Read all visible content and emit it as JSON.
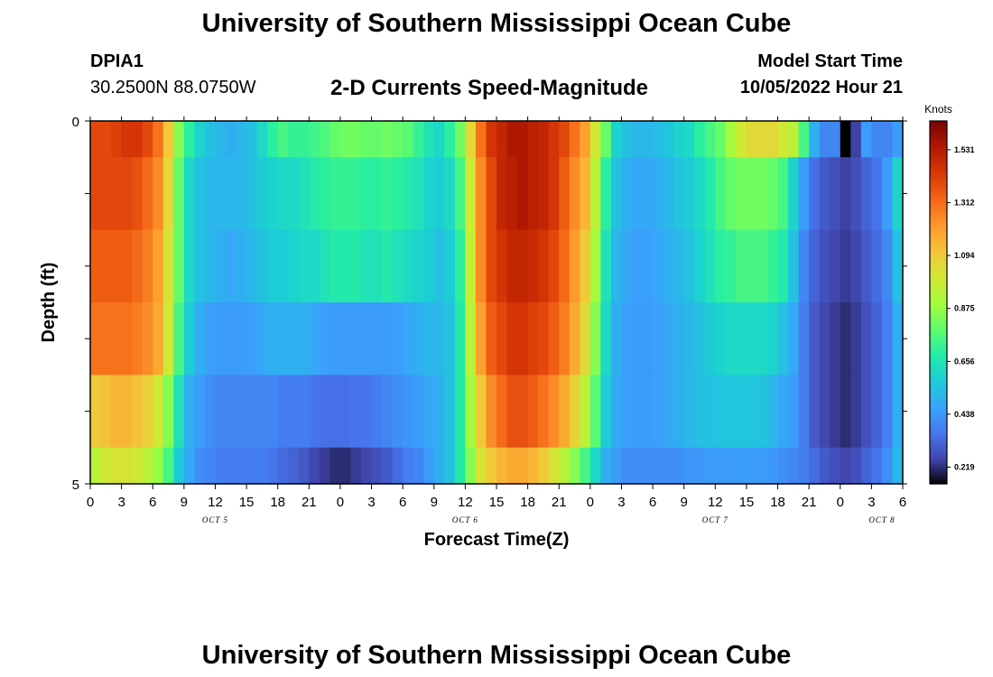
{
  "page": {
    "title": "University of Southern Mississippi Ocean Cube",
    "station": "DPIA1",
    "coords": "30.2500N  88.0750W",
    "subtitle": "2-D Currents Speed-Magnitude",
    "model_label": "Model Start Time",
    "model_time": "10/05/2022 Hour 21",
    "footer_title": "University of Southern Mississippi Ocean Cube"
  },
  "chart_data": {
    "type": "heatmap",
    "title": "2-D Currents Speed-Magnitude",
    "xlabel": "Forecast Time(Z)",
    "ylabel": "Depth (ft)",
    "colorbar_label": "Knots",
    "colorbar_ticks": [
      "1.531",
      "1.312",
      "1.094",
      "0.875",
      "0.656",
      "0.438",
      "0.219"
    ],
    "colorbar_values": [
      1.531,
      1.312,
      1.094,
      0.875,
      0.656,
      0.438,
      0.219
    ],
    "color_range": [
      0.15,
      1.65
    ],
    "x_ticks": [
      "0",
      "3",
      "6",
      "9",
      "12",
      "15",
      "18",
      "21",
      "0",
      "3",
      "6",
      "9",
      "12",
      "15",
      "18",
      "21",
      "0",
      "3",
      "6",
      "9",
      "12",
      "15",
      "18",
      "21",
      "0",
      "3",
      "6"
    ],
    "x_range_hours": [
      0,
      78
    ],
    "date_labels": [
      {
        "text": "OCT 5",
        "hour": 12
      },
      {
        "text": "OCT 6",
        "hour": 36
      },
      {
        "text": "OCT 7",
        "hour": 60
      },
      {
        "text": "OCT 8",
        "hour": 76
      }
    ],
    "y_tick_labels": [
      "0",
      "5"
    ],
    "y_range": [
      0,
      5
    ],
    "layer_depth_bounds": [
      0,
      0.5,
      1.5,
      2.5,
      3.5,
      4.5,
      5
    ],
    "hours": [
      0,
      1,
      2,
      3,
      4,
      5,
      6,
      7,
      8,
      9,
      10,
      11,
      12,
      13,
      14,
      15,
      16,
      17,
      18,
      19,
      20,
      21,
      22,
      23,
      24,
      25,
      26,
      27,
      28,
      29,
      30,
      31,
      32,
      33,
      34,
      35,
      36,
      37,
      38,
      39,
      40,
      41,
      42,
      43,
      44,
      45,
      46,
      47,
      48,
      49,
      50,
      51,
      52,
      53,
      54,
      55,
      56,
      57,
      58,
      59,
      60,
      61,
      62,
      63,
      64,
      65,
      66,
      67,
      68,
      69,
      70,
      71,
      72,
      73,
      74,
      75,
      76,
      77
    ],
    "speeds": [
      [
        1.4,
        1.4,
        1.42,
        1.45,
        1.45,
        1.4,
        1.3,
        1.1,
        0.85,
        0.7,
        0.6,
        0.55,
        0.52,
        0.5,
        0.52,
        0.55,
        0.62,
        0.7,
        0.75,
        0.72,
        0.72,
        0.74,
        0.76,
        0.8,
        0.82,
        0.82,
        0.8,
        0.8,
        0.82,
        0.8,
        0.78,
        0.72,
        0.65,
        0.62,
        0.7,
        0.82,
        1.05,
        1.3,
        1.45,
        1.5,
        1.55,
        1.55,
        1.52,
        1.5,
        1.45,
        1.4,
        1.3,
        1.2,
        1.0,
        0.8,
        0.6,
        0.55,
        0.52,
        0.52,
        0.54,
        0.56,
        0.6,
        0.62,
        0.7,
        0.75,
        0.8,
        0.9,
        1.0,
        1.05,
        1.05,
        1.05,
        1.0,
        0.95,
        0.75,
        0.5,
        0.4,
        0.4,
        0.05,
        0.25,
        0.45,
        0.4,
        0.4,
        0.45
      ],
      [
        1.4,
        1.4,
        1.4,
        1.4,
        1.38,
        1.32,
        1.25,
        1.05,
        0.8,
        0.62,
        0.55,
        0.52,
        0.52,
        0.52,
        0.52,
        0.55,
        0.58,
        0.6,
        0.62,
        0.62,
        0.65,
        0.68,
        0.7,
        0.72,
        0.72,
        0.72,
        0.7,
        0.7,
        0.72,
        0.7,
        0.68,
        0.65,
        0.6,
        0.58,
        0.62,
        0.75,
        1.0,
        1.25,
        1.4,
        1.5,
        1.52,
        1.55,
        1.52,
        1.5,
        1.45,
        1.35,
        1.25,
        1.15,
        0.95,
        0.7,
        0.55,
        0.5,
        0.48,
        0.48,
        0.5,
        0.52,
        0.55,
        0.58,
        0.62,
        0.68,
        0.75,
        0.8,
        0.82,
        0.82,
        0.82,
        0.8,
        0.75,
        0.6,
        0.45,
        0.35,
        0.3,
        0.28,
        0.25,
        0.28,
        0.32,
        0.36,
        0.45,
        0.6
      ],
      [
        1.35,
        1.35,
        1.35,
        1.35,
        1.32,
        1.28,
        1.2,
        1.02,
        0.8,
        0.62,
        0.55,
        0.52,
        0.5,
        0.48,
        0.5,
        0.52,
        0.55,
        0.58,
        0.58,
        0.6,
        0.62,
        0.62,
        0.65,
        0.68,
        0.68,
        0.68,
        0.65,
        0.65,
        0.68,
        0.65,
        0.62,
        0.6,
        0.58,
        0.55,
        0.58,
        0.7,
        0.98,
        1.25,
        1.4,
        1.45,
        1.5,
        1.5,
        1.48,
        1.45,
        1.4,
        1.32,
        1.22,
        1.1,
        0.9,
        0.65,
        0.52,
        0.48,
        0.46,
        0.46,
        0.48,
        0.5,
        0.52,
        0.55,
        0.6,
        0.65,
        0.7,
        0.72,
        0.75,
        0.75,
        0.75,
        0.72,
        0.68,
        0.55,
        0.4,
        0.32,
        0.28,
        0.26,
        0.24,
        0.26,
        0.3,
        0.34,
        0.4,
        0.55
      ],
      [
        1.3,
        1.3,
        1.3,
        1.3,
        1.28,
        1.25,
        1.18,
        1.0,
        0.75,
        0.58,
        0.5,
        0.46,
        0.45,
        0.45,
        0.45,
        0.46,
        0.48,
        0.5,
        0.5,
        0.5,
        0.5,
        0.48,
        0.46,
        0.45,
        0.45,
        0.45,
        0.45,
        0.45,
        0.45,
        0.46,
        0.48,
        0.5,
        0.52,
        0.52,
        0.55,
        0.68,
        0.95,
        1.2,
        1.35,
        1.4,
        1.45,
        1.45,
        1.42,
        1.4,
        1.35,
        1.28,
        1.18,
        1.05,
        0.85,
        0.62,
        0.5,
        0.46,
        0.45,
        0.45,
        0.46,
        0.48,
        0.5,
        0.52,
        0.55,
        0.58,
        0.6,
        0.62,
        0.62,
        0.62,
        0.62,
        0.6,
        0.55,
        0.48,
        0.38,
        0.3,
        0.26,
        0.24,
        0.22,
        0.24,
        0.28,
        0.32,
        0.38,
        0.5
      ],
      [
        1.1,
        1.12,
        1.15,
        1.15,
        1.12,
        1.08,
        1.0,
        0.85,
        0.65,
        0.5,
        0.45,
        0.42,
        0.4,
        0.4,
        0.4,
        0.4,
        0.4,
        0.4,
        0.38,
        0.38,
        0.38,
        0.36,
        0.35,
        0.35,
        0.35,
        0.36,
        0.36,
        0.38,
        0.4,
        0.42,
        0.44,
        0.45,
        0.48,
        0.5,
        0.55,
        0.68,
        0.9,
        1.1,
        1.25,
        1.32,
        1.38,
        1.38,
        1.35,
        1.3,
        1.25,
        1.18,
        1.08,
        0.95,
        0.78,
        0.58,
        0.48,
        0.46,
        0.45,
        0.45,
        0.46,
        0.48,
        0.5,
        0.52,
        0.54,
        0.55,
        0.56,
        0.56,
        0.56,
        0.56,
        0.55,
        0.52,
        0.48,
        0.45,
        0.38,
        0.3,
        0.26,
        0.24,
        0.22,
        0.24,
        0.28,
        0.32,
        0.38,
        0.5
      ],
      [
        0.95,
        1.0,
        1.02,
        1.02,
        1.0,
        0.95,
        0.88,
        0.75,
        0.58,
        0.48,
        0.42,
        0.4,
        0.38,
        0.38,
        0.38,
        0.38,
        0.38,
        0.36,
        0.34,
        0.32,
        0.3,
        0.26,
        0.24,
        0.22,
        0.22,
        0.24,
        0.26,
        0.28,
        0.3,
        0.34,
        0.38,
        0.4,
        0.45,
        0.5,
        0.55,
        0.68,
        0.85,
        1.02,
        1.1,
        1.15,
        1.18,
        1.18,
        1.15,
        1.1,
        1.02,
        0.95,
        0.85,
        0.75,
        0.62,
        0.5,
        0.45,
        0.42,
        0.42,
        0.42,
        0.42,
        0.42,
        0.42,
        0.44,
        0.44,
        0.45,
        0.45,
        0.45,
        0.45,
        0.45,
        0.45,
        0.44,
        0.42,
        0.4,
        0.38,
        0.34,
        0.3,
        0.28,
        0.26,
        0.28,
        0.32,
        0.36,
        0.42,
        0.52
      ]
    ]
  }
}
